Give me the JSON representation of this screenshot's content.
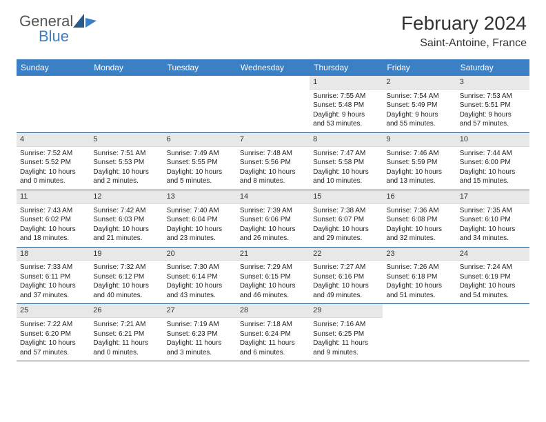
{
  "brand": {
    "part1": "General",
    "part2": "Blue"
  },
  "title": "February 2024",
  "location": "Saint-Antoine, France",
  "colors": {
    "header_bg": "#3b7fc4",
    "header_text": "#ffffff",
    "date_bg": "#e8e8e8",
    "week_border": "#2a5a8a",
    "text": "#222222",
    "logo_gray": "#555555",
    "logo_blue": "#3b7fc4"
  },
  "day_labels": [
    "Sunday",
    "Monday",
    "Tuesday",
    "Wednesday",
    "Thursday",
    "Friday",
    "Saturday"
  ],
  "weeks": [
    [
      {
        "empty": true
      },
      {
        "empty": true
      },
      {
        "empty": true
      },
      {
        "empty": true
      },
      {
        "date": "1",
        "sunrise": "Sunrise: 7:55 AM",
        "sunset": "Sunset: 5:48 PM",
        "daylight1": "Daylight: 9 hours",
        "daylight2": "and 53 minutes."
      },
      {
        "date": "2",
        "sunrise": "Sunrise: 7:54 AM",
        "sunset": "Sunset: 5:49 PM",
        "daylight1": "Daylight: 9 hours",
        "daylight2": "and 55 minutes."
      },
      {
        "date": "3",
        "sunrise": "Sunrise: 7:53 AM",
        "sunset": "Sunset: 5:51 PM",
        "daylight1": "Daylight: 9 hours",
        "daylight2": "and 57 minutes."
      }
    ],
    [
      {
        "date": "4",
        "sunrise": "Sunrise: 7:52 AM",
        "sunset": "Sunset: 5:52 PM",
        "daylight1": "Daylight: 10 hours",
        "daylight2": "and 0 minutes."
      },
      {
        "date": "5",
        "sunrise": "Sunrise: 7:51 AM",
        "sunset": "Sunset: 5:53 PM",
        "daylight1": "Daylight: 10 hours",
        "daylight2": "and 2 minutes."
      },
      {
        "date": "6",
        "sunrise": "Sunrise: 7:49 AM",
        "sunset": "Sunset: 5:55 PM",
        "daylight1": "Daylight: 10 hours",
        "daylight2": "and 5 minutes."
      },
      {
        "date": "7",
        "sunrise": "Sunrise: 7:48 AM",
        "sunset": "Sunset: 5:56 PM",
        "daylight1": "Daylight: 10 hours",
        "daylight2": "and 8 minutes."
      },
      {
        "date": "8",
        "sunrise": "Sunrise: 7:47 AM",
        "sunset": "Sunset: 5:58 PM",
        "daylight1": "Daylight: 10 hours",
        "daylight2": "and 10 minutes."
      },
      {
        "date": "9",
        "sunrise": "Sunrise: 7:46 AM",
        "sunset": "Sunset: 5:59 PM",
        "daylight1": "Daylight: 10 hours",
        "daylight2": "and 13 minutes."
      },
      {
        "date": "10",
        "sunrise": "Sunrise: 7:44 AM",
        "sunset": "Sunset: 6:00 PM",
        "daylight1": "Daylight: 10 hours",
        "daylight2": "and 15 minutes."
      }
    ],
    [
      {
        "date": "11",
        "sunrise": "Sunrise: 7:43 AM",
        "sunset": "Sunset: 6:02 PM",
        "daylight1": "Daylight: 10 hours",
        "daylight2": "and 18 minutes."
      },
      {
        "date": "12",
        "sunrise": "Sunrise: 7:42 AM",
        "sunset": "Sunset: 6:03 PM",
        "daylight1": "Daylight: 10 hours",
        "daylight2": "and 21 minutes."
      },
      {
        "date": "13",
        "sunrise": "Sunrise: 7:40 AM",
        "sunset": "Sunset: 6:04 PM",
        "daylight1": "Daylight: 10 hours",
        "daylight2": "and 23 minutes."
      },
      {
        "date": "14",
        "sunrise": "Sunrise: 7:39 AM",
        "sunset": "Sunset: 6:06 PM",
        "daylight1": "Daylight: 10 hours",
        "daylight2": "and 26 minutes."
      },
      {
        "date": "15",
        "sunrise": "Sunrise: 7:38 AM",
        "sunset": "Sunset: 6:07 PM",
        "daylight1": "Daylight: 10 hours",
        "daylight2": "and 29 minutes."
      },
      {
        "date": "16",
        "sunrise": "Sunrise: 7:36 AM",
        "sunset": "Sunset: 6:08 PM",
        "daylight1": "Daylight: 10 hours",
        "daylight2": "and 32 minutes."
      },
      {
        "date": "17",
        "sunrise": "Sunrise: 7:35 AM",
        "sunset": "Sunset: 6:10 PM",
        "daylight1": "Daylight: 10 hours",
        "daylight2": "and 34 minutes."
      }
    ],
    [
      {
        "date": "18",
        "sunrise": "Sunrise: 7:33 AM",
        "sunset": "Sunset: 6:11 PM",
        "daylight1": "Daylight: 10 hours",
        "daylight2": "and 37 minutes."
      },
      {
        "date": "19",
        "sunrise": "Sunrise: 7:32 AM",
        "sunset": "Sunset: 6:12 PM",
        "daylight1": "Daylight: 10 hours",
        "daylight2": "and 40 minutes."
      },
      {
        "date": "20",
        "sunrise": "Sunrise: 7:30 AM",
        "sunset": "Sunset: 6:14 PM",
        "daylight1": "Daylight: 10 hours",
        "daylight2": "and 43 minutes."
      },
      {
        "date": "21",
        "sunrise": "Sunrise: 7:29 AM",
        "sunset": "Sunset: 6:15 PM",
        "daylight1": "Daylight: 10 hours",
        "daylight2": "and 46 minutes."
      },
      {
        "date": "22",
        "sunrise": "Sunrise: 7:27 AM",
        "sunset": "Sunset: 6:16 PM",
        "daylight1": "Daylight: 10 hours",
        "daylight2": "and 49 minutes."
      },
      {
        "date": "23",
        "sunrise": "Sunrise: 7:26 AM",
        "sunset": "Sunset: 6:18 PM",
        "daylight1": "Daylight: 10 hours",
        "daylight2": "and 51 minutes."
      },
      {
        "date": "24",
        "sunrise": "Sunrise: 7:24 AM",
        "sunset": "Sunset: 6:19 PM",
        "daylight1": "Daylight: 10 hours",
        "daylight2": "and 54 minutes."
      }
    ],
    [
      {
        "date": "25",
        "sunrise": "Sunrise: 7:22 AM",
        "sunset": "Sunset: 6:20 PM",
        "daylight1": "Daylight: 10 hours",
        "daylight2": "and 57 minutes."
      },
      {
        "date": "26",
        "sunrise": "Sunrise: 7:21 AM",
        "sunset": "Sunset: 6:21 PM",
        "daylight1": "Daylight: 11 hours",
        "daylight2": "and 0 minutes."
      },
      {
        "date": "27",
        "sunrise": "Sunrise: 7:19 AM",
        "sunset": "Sunset: 6:23 PM",
        "daylight1": "Daylight: 11 hours",
        "daylight2": "and 3 minutes."
      },
      {
        "date": "28",
        "sunrise": "Sunrise: 7:18 AM",
        "sunset": "Sunset: 6:24 PM",
        "daylight1": "Daylight: 11 hours",
        "daylight2": "and 6 minutes."
      },
      {
        "date": "29",
        "sunrise": "Sunrise: 7:16 AM",
        "sunset": "Sunset: 6:25 PM",
        "daylight1": "Daylight: 11 hours",
        "daylight2": "and 9 minutes."
      },
      {
        "empty": true
      },
      {
        "empty": true
      }
    ]
  ]
}
